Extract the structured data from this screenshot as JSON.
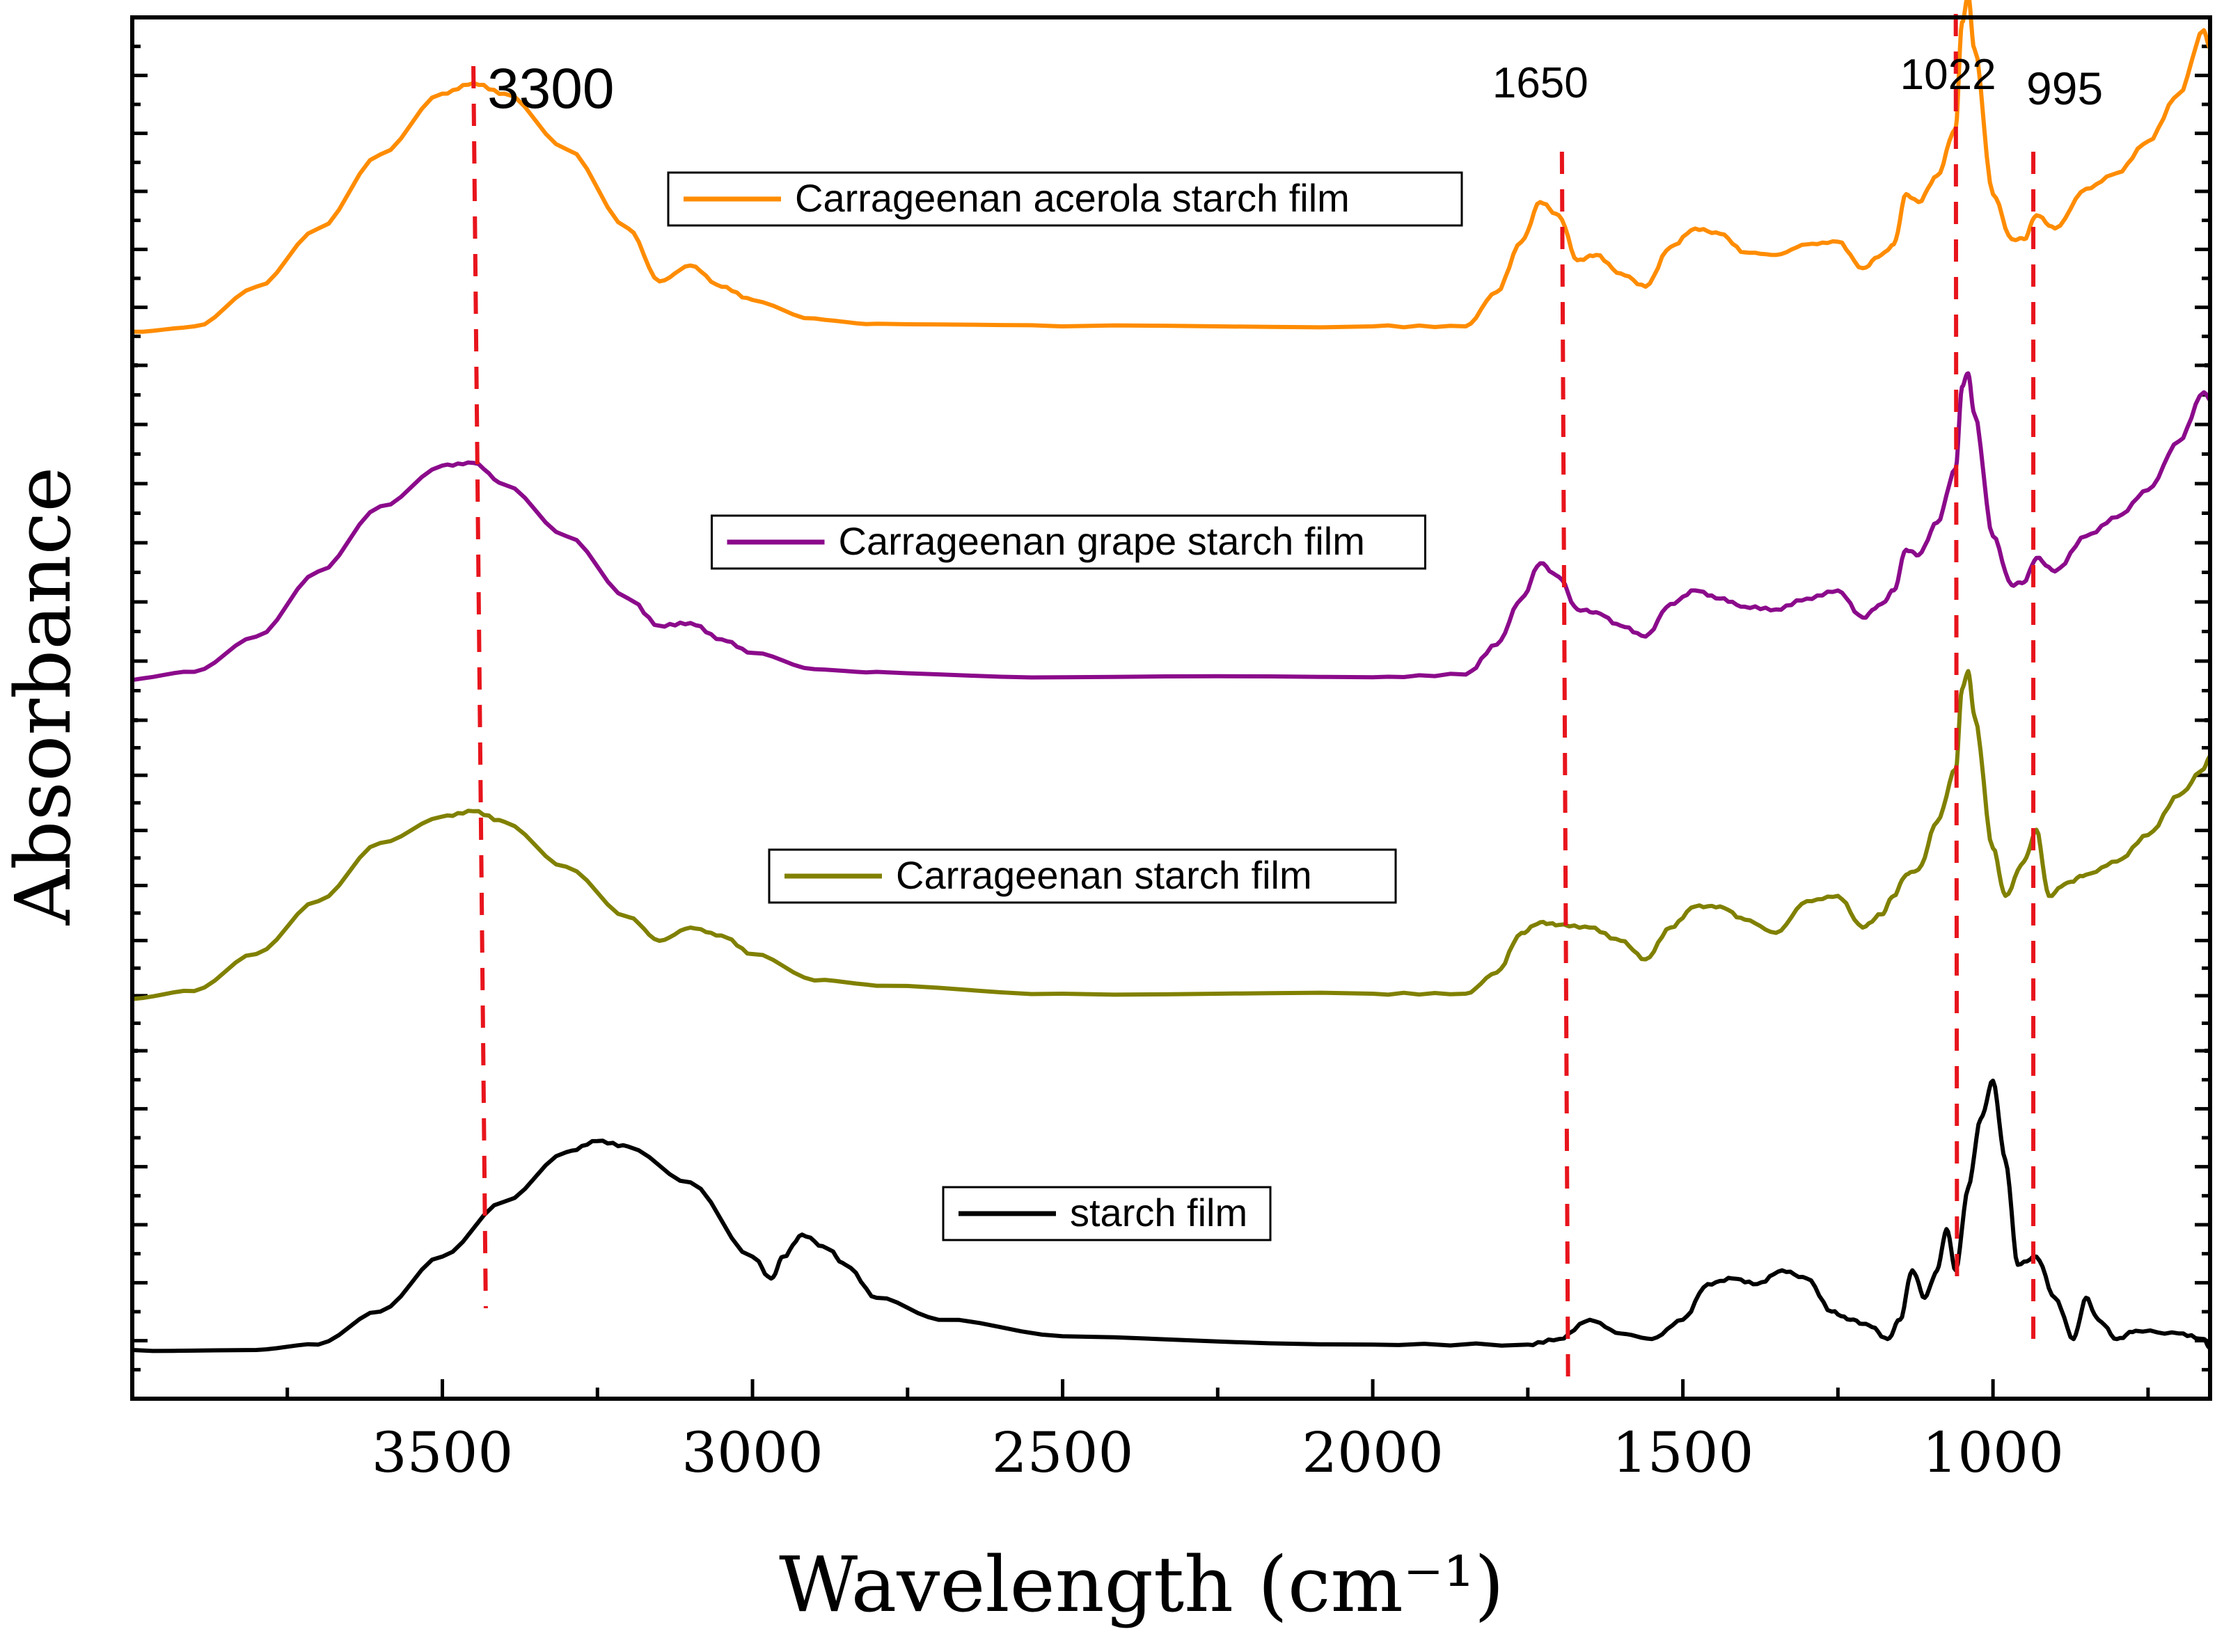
{
  "chart_data": {
    "type": "line",
    "title": "",
    "xlabel": "Wavelength (cm⁻¹)",
    "ylabel": "Absorbance",
    "xlim": [
      4000,
      650
    ],
    "x_reversed": true,
    "x_ticks": [
      3500,
      3000,
      2500,
      2000,
      1500,
      1000
    ],
    "x_tick_labels": [
      "3500",
      "3000",
      "2500",
      "2000",
      "1500",
      "1000"
    ],
    "y_tick_labels_shown": false,
    "grid": false,
    "legend_placement": "per-panel, center",
    "series": [
      {
        "name": "Carrageenan acerola starch film",
        "legend_label": "Carrageenan acerola starch film",
        "color": "#ff8c00",
        "points": [
          [
            4000,
            0.03
          ],
          [
            3900,
            0.05
          ],
          [
            3800,
            0.2
          ],
          [
            3700,
            0.42
          ],
          [
            3600,
            0.7
          ],
          [
            3500,
            0.93
          ],
          [
            3450,
            0.97
          ],
          [
            3400,
            0.93
          ],
          [
            3300,
            0.72
          ],
          [
            3200,
            0.42
          ],
          [
            3150,
            0.22
          ],
          [
            3100,
            0.28
          ],
          [
            3050,
            0.2
          ],
          [
            3000,
            0.15
          ],
          [
            2900,
            0.08
          ],
          [
            2800,
            0.06
          ],
          [
            2500,
            0.05
          ],
          [
            2000,
            0.05
          ],
          [
            1850,
            0.05
          ],
          [
            1800,
            0.18
          ],
          [
            1760,
            0.37
          ],
          [
            1730,
            0.52
          ],
          [
            1700,
            0.47
          ],
          [
            1670,
            0.3
          ],
          [
            1640,
            0.32
          ],
          [
            1600,
            0.25
          ],
          [
            1560,
            0.2
          ],
          [
            1520,
            0.35
          ],
          [
            1480,
            0.42
          ],
          [
            1440,
            0.4
          ],
          [
            1400,
            0.33
          ],
          [
            1350,
            0.32
          ],
          [
            1300,
            0.36
          ],
          [
            1250,
            0.37
          ],
          [
            1210,
            0.27
          ],
          [
            1180,
            0.32
          ],
          [
            1160,
            0.36
          ],
          [
            1140,
            0.55
          ],
          [
            1120,
            0.52
          ],
          [
            1090,
            0.62
          ],
          [
            1060,
            0.8
          ],
          [
            1050,
            1.2
          ],
          [
            1040,
            1.3
          ],
          [
            1030,
            1.1
          ],
          [
            1000,
            0.55
          ],
          [
            970,
            0.38
          ],
          [
            950,
            0.38
          ],
          [
            930,
            0.47
          ],
          [
            900,
            0.42
          ],
          [
            850,
            0.57
          ],
          [
            800,
            0.63
          ],
          [
            750,
            0.75
          ],
          [
            700,
            0.93
          ],
          [
            660,
            1.17
          ],
          [
            650,
            1.1
          ]
        ]
      },
      {
        "name": "Carrageenan grape starch film",
        "legend_label": "Carrageenan grape starch film",
        "color": "#8b0a8b",
        "points": [
          [
            4000,
            0.02
          ],
          [
            3900,
            0.05
          ],
          [
            3800,
            0.18
          ],
          [
            3700,
            0.42
          ],
          [
            3600,
            0.66
          ],
          [
            3500,
            0.81
          ],
          [
            3450,
            0.82
          ],
          [
            3400,
            0.74
          ],
          [
            3300,
            0.55
          ],
          [
            3200,
            0.32
          ],
          [
            3150,
            0.22
          ],
          [
            3100,
            0.23
          ],
          [
            3050,
            0.17
          ],
          [
            3000,
            0.12
          ],
          [
            2900,
            0.06
          ],
          [
            2800,
            0.05
          ],
          [
            2500,
            0.03
          ],
          [
            2000,
            0.03
          ],
          [
            1850,
            0.04
          ],
          [
            1800,
            0.15
          ],
          [
            1760,
            0.32
          ],
          [
            1730,
            0.45
          ],
          [
            1700,
            0.4
          ],
          [
            1670,
            0.28
          ],
          [
            1640,
            0.27
          ],
          [
            1600,
            0.22
          ],
          [
            1560,
            0.18
          ],
          [
            1520,
            0.3
          ],
          [
            1480,
            0.35
          ],
          [
            1440,
            0.32
          ],
          [
            1400,
            0.29
          ],
          [
            1350,
            0.28
          ],
          [
            1300,
            0.32
          ],
          [
            1250,
            0.35
          ],
          [
            1210,
            0.25
          ],
          [
            1180,
            0.3
          ],
          [
            1160,
            0.35
          ],
          [
            1140,
            0.5
          ],
          [
            1120,
            0.48
          ],
          [
            1090,
            0.6
          ],
          [
            1060,
            0.8
          ],
          [
            1050,
            1.1
          ],
          [
            1040,
            1.15
          ],
          [
            1030,
            1.0
          ],
          [
            1000,
            0.55
          ],
          [
            970,
            0.37
          ],
          [
            950,
            0.38
          ],
          [
            930,
            0.47
          ],
          [
            900,
            0.42
          ],
          [
            850,
            0.55
          ],
          [
            800,
            0.62
          ],
          [
            750,
            0.72
          ],
          [
            700,
            0.9
          ],
          [
            660,
            1.08
          ],
          [
            650,
            1.05
          ]
        ]
      },
      {
        "name": "Carrageenan starch film",
        "legend_label": "Carrageenan starch film",
        "color": "#808000",
        "points": [
          [
            4000,
            0.03
          ],
          [
            3900,
            0.06
          ],
          [
            3800,
            0.2
          ],
          [
            3700,
            0.4
          ],
          [
            3600,
            0.62
          ],
          [
            3500,
            0.72
          ],
          [
            3450,
            0.74
          ],
          [
            3400,
            0.7
          ],
          [
            3300,
            0.53
          ],
          [
            3200,
            0.34
          ],
          [
            3150,
            0.25
          ],
          [
            3100,
            0.3
          ],
          [
            3050,
            0.27
          ],
          [
            3000,
            0.2
          ],
          [
            2900,
            0.1
          ],
          [
            2800,
            0.08
          ],
          [
            2500,
            0.05
          ],
          [
            2000,
            0.05
          ],
          [
            1850,
            0.05
          ],
          [
            1800,
            0.13
          ],
          [
            1760,
            0.28
          ],
          [
            1730,
            0.32
          ],
          [
            1700,
            0.31
          ],
          [
            1650,
            0.3
          ],
          [
            1600,
            0.25
          ],
          [
            1560,
            0.18
          ],
          [
            1520,
            0.3
          ],
          [
            1480,
            0.38
          ],
          [
            1440,
            0.38
          ],
          [
            1400,
            0.33
          ],
          [
            1350,
            0.28
          ],
          [
            1300,
            0.4
          ],
          [
            1250,
            0.42
          ],
          [
            1210,
            0.3
          ],
          [
            1180,
            0.35
          ],
          [
            1160,
            0.42
          ],
          [
            1140,
            0.5
          ],
          [
            1120,
            0.52
          ],
          [
            1090,
            0.7
          ],
          [
            1060,
            0.9
          ],
          [
            1050,
            1.2
          ],
          [
            1040,
            1.27
          ],
          [
            1030,
            1.1
          ],
          [
            1000,
            0.6
          ],
          [
            980,
            0.42
          ],
          [
            950,
            0.55
          ],
          [
            930,
            0.67
          ],
          [
            910,
            0.42
          ],
          [
            880,
            0.47
          ],
          [
            850,
            0.5
          ],
          [
            800,
            0.55
          ],
          [
            750,
            0.65
          ],
          [
            700,
            0.8
          ],
          [
            660,
            0.9
          ],
          [
            650,
            0.95
          ]
        ]
      },
      {
        "name": "starch film",
        "legend_label": "starch film",
        "color": "#000000",
        "points": [
          [
            4000,
            0.01
          ],
          [
            3800,
            0.01
          ],
          [
            3700,
            0.03
          ],
          [
            3600,
            0.15
          ],
          [
            3500,
            0.35
          ],
          [
            3400,
            0.55
          ],
          [
            3300,
            0.73
          ],
          [
            3250,
            0.77
          ],
          [
            3200,
            0.75
          ],
          [
            3100,
            0.62
          ],
          [
            3000,
            0.35
          ],
          [
            2970,
            0.27
          ],
          [
            2950,
            0.35
          ],
          [
            2920,
            0.43
          ],
          [
            2880,
            0.38
          ],
          [
            2850,
            0.32
          ],
          [
            2800,
            0.2
          ],
          [
            2700,
            0.12
          ],
          [
            2500,
            0.06
          ],
          [
            2000,
            0.03
          ],
          [
            1750,
            0.03
          ],
          [
            1700,
            0.05
          ],
          [
            1650,
            0.12
          ],
          [
            1600,
            0.07
          ],
          [
            1550,
            0.05
          ],
          [
            1500,
            0.12
          ],
          [
            1460,
            0.25
          ],
          [
            1420,
            0.27
          ],
          [
            1380,
            0.25
          ],
          [
            1340,
            0.3
          ],
          [
            1300,
            0.27
          ],
          [
            1260,
            0.15
          ],
          [
            1230,
            0.12
          ],
          [
            1200,
            0.1
          ],
          [
            1170,
            0.05
          ],
          [
            1150,
            0.12
          ],
          [
            1130,
            0.3
          ],
          [
            1110,
            0.2
          ],
          [
            1090,
            0.3
          ],
          [
            1075,
            0.45
          ],
          [
            1060,
            0.3
          ],
          [
            1040,
            0.6
          ],
          [
            1020,
            0.85
          ],
          [
            1000,
            0.99
          ],
          [
            980,
            0.7
          ],
          [
            960,
            0.32
          ],
          [
            930,
            0.35
          ],
          [
            900,
            0.2
          ],
          [
            870,
            0.05
          ],
          [
            850,
            0.2
          ],
          [
            830,
            0.12
          ],
          [
            800,
            0.05
          ],
          [
            770,
            0.08
          ],
          [
            700,
            0.07
          ],
          [
            660,
            0.05
          ],
          [
            650,
            0.02
          ]
        ]
      }
    ],
    "reference_lines": [
      {
        "x_top": 3450,
        "x_bottom": 3430,
        "label": "3300",
        "color": "#e8141c"
      },
      {
        "x_top": 1695,
        "x_bottom": 1685,
        "label": "1650",
        "color": "#e8141c"
      },
      {
        "x_top": 1060,
        "x_bottom": 1058,
        "label": "1022",
        "color": "#e8141c"
      },
      {
        "x_top": 935,
        "x_bottom": 935,
        "label": "995",
        "color": "#e8141c"
      }
    ]
  }
}
